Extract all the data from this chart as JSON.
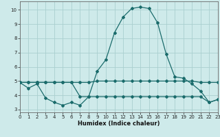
{
  "xlabel": "Humidex (Indice chaleur)",
  "bg_color": "#ceeaea",
  "grid_color": "#aacfcf",
  "line_color": "#1a6b6b",
  "line1_x": [
    0,
    1,
    2,
    3,
    4,
    5,
    6,
    7,
    8,
    9,
    10,
    11,
    12,
    13,
    14,
    15,
    16,
    17,
    18,
    19,
    20,
    21,
    22,
    23
  ],
  "line1_y": [
    4.9,
    4.5,
    4.8,
    3.8,
    3.5,
    3.3,
    3.5,
    3.3,
    3.9,
    5.7,
    6.5,
    8.4,
    9.5,
    10.1,
    10.2,
    10.1,
    9.1,
    6.9,
    5.3,
    5.2,
    4.8,
    4.3,
    3.5,
    3.7
  ],
  "line2_x": [
    0,
    1,
    2,
    3,
    4,
    5,
    6,
    7,
    8,
    9,
    10,
    11,
    12,
    13,
    14,
    15,
    16,
    17,
    18,
    19,
    20,
    21,
    22,
    23
  ],
  "line2_y": [
    4.9,
    4.9,
    4.9,
    4.9,
    4.9,
    4.9,
    4.9,
    4.9,
    4.9,
    5.0,
    5.0,
    5.0,
    5.0,
    5.0,
    5.0,
    5.0,
    5.0,
    5.0,
    5.0,
    5.0,
    5.0,
    4.9,
    4.9,
    4.9
  ],
  "line3_x": [
    0,
    1,
    2,
    3,
    4,
    5,
    6,
    7,
    8,
    9,
    10,
    11,
    12,
    13,
    14,
    15,
    16,
    17,
    18,
    19,
    20,
    21,
    22,
    23
  ],
  "line3_y": [
    4.9,
    4.9,
    4.9,
    4.9,
    4.9,
    4.9,
    4.9,
    3.9,
    3.9,
    3.9,
    3.9,
    3.9,
    3.9,
    3.9,
    3.9,
    3.9,
    3.9,
    3.9,
    3.9,
    3.9,
    3.9,
    3.9,
    3.5,
    3.7
  ],
  "ylim": [
    2.8,
    10.6
  ],
  "xlim": [
    0,
    23
  ],
  "yticks": [
    3,
    4,
    5,
    6,
    7,
    8,
    9,
    10
  ],
  "xticks": [
    0,
    1,
    2,
    3,
    4,
    5,
    6,
    7,
    8,
    9,
    10,
    11,
    12,
    13,
    14,
    15,
    16,
    17,
    18,
    19,
    20,
    21,
    22,
    23
  ],
  "marker": "D",
  "marker_size": 2.0,
  "linewidth": 0.9,
  "tick_fontsize": 5.0,
  "xlabel_fontsize": 6.0
}
